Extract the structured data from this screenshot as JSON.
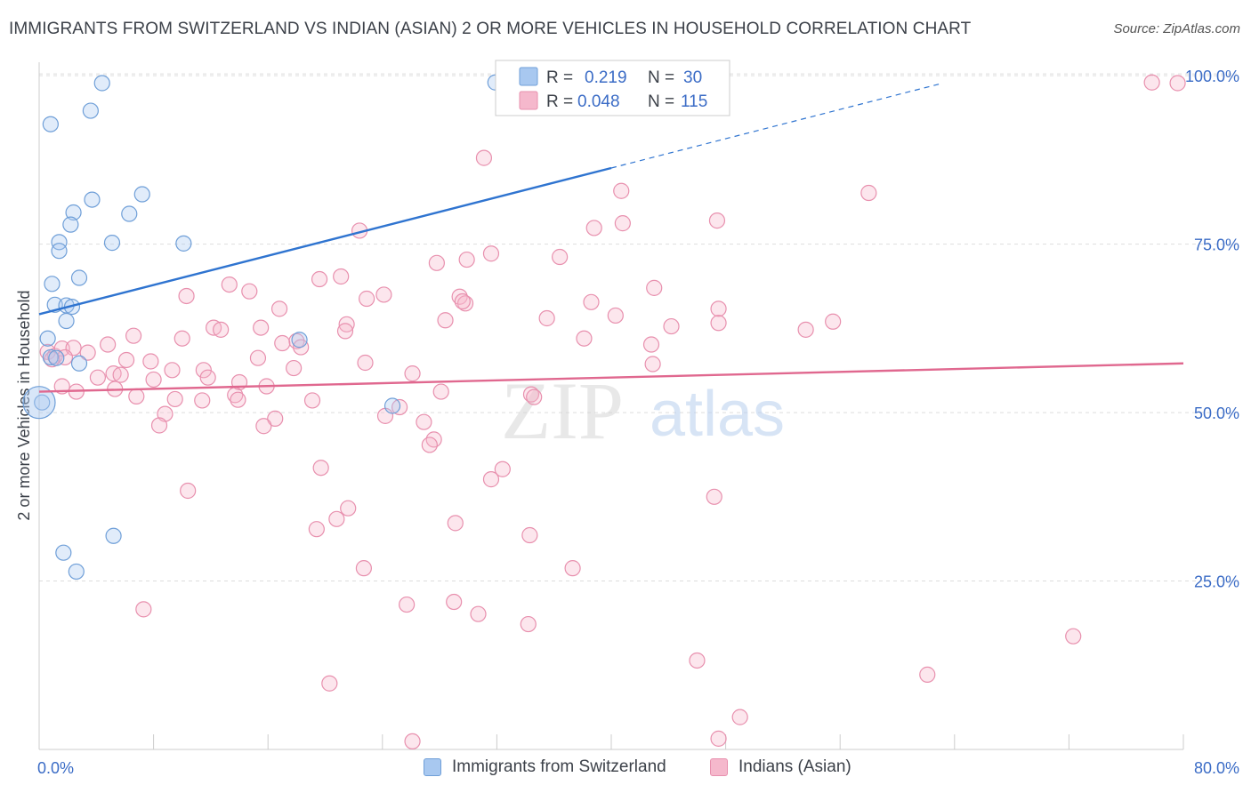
{
  "title": "IMMIGRANTS FROM SWITZERLAND VS INDIAN (ASIAN) 2 OR MORE VEHICLES IN HOUSEHOLD CORRELATION CHART",
  "source": "Source: ZipAtlas.com",
  "watermark": {
    "zip": "ZIP",
    "atlas": "atlas"
  },
  "legend_box": {
    "rows": [
      {
        "r_label": "R =",
        "r_value": "0.219",
        "n_label": "N =",
        "n_value": "30"
      },
      {
        "r_label": "R =",
        "r_value": "0.048",
        "n_label": "N =",
        "n_value": "115"
      }
    ]
  },
  "colors": {
    "blue_fill": "#a8c8f0",
    "blue_stroke": "#6f9fd8",
    "blue_line": "#2f74d0",
    "pink_fill": "#f5b8cc",
    "pink_stroke": "#e890ae",
    "pink_line": "#e0688f",
    "value_blue": "#3b6cc6",
    "grid": "#dddddd"
  },
  "chart_data": {
    "type": "scatter",
    "title": "IMMIGRANTS FROM SWITZERLAND VS INDIAN (ASIAN) 2 OR MORE VEHICLES IN HOUSEHOLD CORRELATION CHART",
    "xlabel": "",
    "ylabel": "2 or more Vehicles in Household",
    "xlim": [
      0,
      80
    ],
    "ylim": [
      0,
      102
    ],
    "x_tick_labels": [
      "0.0%",
      "80.0%"
    ],
    "y_ticks": [
      25,
      50,
      75,
      100
    ],
    "y_tick_labels": [
      "25.0%",
      "50.0%",
      "75.0%",
      "100.0%"
    ],
    "legend": [
      "Immigrants from Switzerland",
      "Indians (Asian)"
    ],
    "series": [
      {
        "name": "Immigrants from Switzerland",
        "points": [
          [
            4.4,
            98.9
          ],
          [
            3.6,
            94.8
          ],
          [
            0.8,
            92.8
          ],
          [
            7.2,
            82.4
          ],
          [
            3.7,
            81.6
          ],
          [
            6.3,
            79.5
          ],
          [
            2.4,
            79.7
          ],
          [
            2.2,
            77.9
          ],
          [
            1.4,
            75.3
          ],
          [
            5.1,
            75.2
          ],
          [
            10.1,
            75.1
          ],
          [
            1.4,
            74.0
          ],
          [
            2.8,
            70.0
          ],
          [
            0.9,
            69.1
          ],
          [
            1.1,
            66.0
          ],
          [
            1.9,
            65.9
          ],
          [
            2.3,
            65.7
          ],
          [
            1.9,
            63.6
          ],
          [
            0.6,
            61.0
          ],
          [
            18.2,
            60.8
          ],
          [
            0.8,
            58.2
          ],
          [
            1.2,
            58.1
          ],
          [
            2.8,
            57.3
          ],
          [
            0.2,
            51.5
          ],
          [
            24.7,
            51.0
          ],
          [
            5.2,
            31.7
          ],
          [
            1.7,
            29.2
          ],
          [
            2.6,
            26.4
          ],
          [
            31.9,
            99.0
          ],
          [
            0.0,
            51.5
          ]
        ],
        "regression": {
          "x0": 0,
          "y0": 64.6,
          "x1": 40,
          "y1": 86.3,
          "dash_to_x": 63,
          "dash_to_y": 98.8
        }
      },
      {
        "name": "Indians (Asian)",
        "points": [
          [
            31.1,
            87.8
          ],
          [
            40.7,
            82.9
          ],
          [
            58.0,
            82.6
          ],
          [
            40.8,
            78.1
          ],
          [
            47.4,
            78.5
          ],
          [
            38.8,
            77.4
          ],
          [
            22.4,
            77.0
          ],
          [
            31.6,
            73.6
          ],
          [
            36.4,
            73.1
          ],
          [
            29.9,
            72.7
          ],
          [
            27.8,
            72.2
          ],
          [
            21.1,
            70.2
          ],
          [
            19.6,
            69.8
          ],
          [
            13.3,
            69.0
          ],
          [
            43.0,
            68.5
          ],
          [
            14.7,
            68.0
          ],
          [
            10.3,
            67.3
          ],
          [
            22.9,
            66.9
          ],
          [
            24.1,
            67.5
          ],
          [
            29.4,
            67.2
          ],
          [
            29.8,
            66.2
          ],
          [
            38.6,
            66.4
          ],
          [
            16.8,
            65.4
          ],
          [
            47.5,
            65.4
          ],
          [
            40.3,
            64.4
          ],
          [
            35.5,
            64.0
          ],
          [
            28.4,
            63.7
          ],
          [
            21.5,
            63.1
          ],
          [
            44.2,
            62.8
          ],
          [
            47.5,
            63.3
          ],
          [
            55.5,
            63.5
          ],
          [
            12.2,
            62.6
          ],
          [
            12.7,
            62.3
          ],
          [
            15.5,
            62.6
          ],
          [
            6.6,
            61.4
          ],
          [
            38.1,
            61.0
          ],
          [
            18.0,
            60.6
          ],
          [
            10.0,
            61.0
          ],
          [
            4.8,
            60.1
          ],
          [
            42.8,
            60.1
          ],
          [
            17.0,
            60.3
          ],
          [
            18.3,
            59.7
          ],
          [
            0.6,
            59.0
          ],
          [
            1.1,
            58.4
          ],
          [
            1.6,
            59.5
          ],
          [
            2.4,
            59.6
          ],
          [
            3.4,
            58.9
          ],
          [
            1.8,
            58.2
          ],
          [
            15.3,
            58.1
          ],
          [
            6.1,
            57.8
          ],
          [
            7.8,
            57.6
          ],
          [
            0.9,
            57.9
          ],
          [
            22.8,
            57.4
          ],
          [
            42.9,
            57.2
          ],
          [
            17.8,
            56.6
          ],
          [
            9.3,
            56.3
          ],
          [
            11.5,
            56.3
          ],
          [
            5.2,
            55.8
          ],
          [
            5.7,
            55.6
          ],
          [
            4.1,
            55.2
          ],
          [
            11.8,
            55.2
          ],
          [
            8.0,
            54.9
          ],
          [
            14.0,
            54.5
          ],
          [
            1.6,
            53.9
          ],
          [
            2.6,
            53.1
          ],
          [
            5.3,
            53.5
          ],
          [
            13.7,
            52.6
          ],
          [
            6.8,
            52.4
          ],
          [
            9.5,
            52.0
          ],
          [
            11.4,
            51.8
          ],
          [
            13.9,
            51.9
          ],
          [
            19.1,
            51.8
          ],
          [
            25.2,
            50.8
          ],
          [
            24.2,
            49.5
          ],
          [
            34.4,
            52.7
          ],
          [
            28.1,
            53.1
          ],
          [
            34.6,
            52.3
          ],
          [
            8.8,
            49.8
          ],
          [
            16.5,
            49.1
          ],
          [
            15.7,
            48.0
          ],
          [
            26.9,
            48.6
          ],
          [
            27.6,
            46.0
          ],
          [
            27.3,
            45.2
          ],
          [
            8.4,
            48.1
          ],
          [
            32.4,
            41.6
          ],
          [
            31.6,
            40.1
          ],
          [
            19.7,
            41.8
          ],
          [
            47.2,
            37.5
          ],
          [
            10.4,
            38.4
          ],
          [
            21.6,
            35.8
          ],
          [
            20.8,
            34.2
          ],
          [
            19.4,
            32.7
          ],
          [
            29.1,
            33.6
          ],
          [
            34.3,
            31.8
          ],
          [
            22.7,
            26.9
          ],
          [
            37.3,
            26.9
          ],
          [
            29.0,
            21.9
          ],
          [
            25.7,
            21.5
          ],
          [
            30.7,
            20.1
          ],
          [
            7.3,
            20.8
          ],
          [
            34.2,
            18.6
          ],
          [
            72.3,
            16.8
          ],
          [
            46.0,
            13.2
          ],
          [
            62.1,
            11.1
          ],
          [
            20.3,
            9.8
          ],
          [
            49.0,
            4.8
          ],
          [
            47.5,
            1.6
          ],
          [
            26.1,
            1.2
          ],
          [
            77.8,
            99.0
          ],
          [
            79.6,
            98.9
          ],
          [
            15.9,
            53.9
          ],
          [
            26.1,
            55.8
          ],
          [
            21.4,
            62.1
          ],
          [
            29.6,
            66.5
          ],
          [
            53.6,
            62.3
          ]
        ],
        "regression": {
          "x0": 0,
          "y0": 53.1,
          "x1": 80,
          "y1": 57.3
        }
      }
    ]
  }
}
